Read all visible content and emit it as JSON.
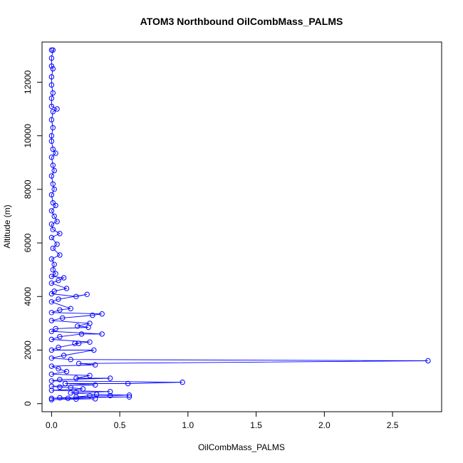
{
  "chart_data": {
    "type": "line",
    "title": "ATOM3 Northbound OilCombMass_PALMS",
    "xlabel": "OilCombMass_PALMS",
    "ylabel": "Altitude (m)",
    "xlim": [
      -0.07,
      2.86
    ],
    "ylim": [
      -300,
      13500
    ],
    "xticks": [
      0.0,
      0.5,
      1.0,
      1.5,
      2.0,
      2.5
    ],
    "xtick_labels": [
      "0.0",
      "0.5",
      "1.0",
      "1.5",
      "2.0",
      "2.5"
    ],
    "yticks": [
      0,
      2000,
      4000,
      6000,
      8000,
      10000,
      12000
    ],
    "ytick_labels": [
      "0",
      "2000",
      "4000",
      "6000",
      "8000",
      "10000",
      "12000"
    ],
    "grid": false,
    "marker": "open-circle",
    "series": [
      {
        "color": "#0000ff",
        "points": [
          [
            0.0,
            13200
          ],
          [
            0.01,
            13200
          ],
          [
            0.0,
            12900
          ],
          [
            0.0,
            12600
          ],
          [
            0.01,
            12500
          ],
          [
            0.0,
            12200
          ],
          [
            0.0,
            11900
          ],
          [
            0.01,
            11600
          ],
          [
            0.0,
            11400
          ],
          [
            0.0,
            11100
          ],
          [
            0.04,
            11000
          ],
          [
            0.01,
            10900
          ],
          [
            0.0,
            10600
          ],
          [
            0.01,
            10300
          ],
          [
            0.0,
            10000
          ],
          [
            0.0,
            9800
          ],
          [
            0.01,
            9500
          ],
          [
            0.03,
            9350
          ],
          [
            0.0,
            9200
          ],
          [
            0.01,
            8900
          ],
          [
            0.02,
            8700
          ],
          [
            0.0,
            8500
          ],
          [
            0.01,
            8200
          ],
          [
            0.02,
            8000
          ],
          [
            0.0,
            7800
          ],
          [
            0.01,
            7500
          ],
          [
            0.03,
            7400
          ],
          [
            0.0,
            7200
          ],
          [
            0.02,
            7000
          ],
          [
            0.04,
            6800
          ],
          [
            0.0,
            6700
          ],
          [
            0.01,
            6500
          ],
          [
            0.06,
            6350
          ],
          [
            0.0,
            6200
          ],
          [
            0.04,
            5950
          ],
          [
            0.01,
            5800
          ],
          [
            0.06,
            5550
          ],
          [
            0.0,
            5400
          ],
          [
            0.02,
            5200
          ],
          [
            0.01,
            5000
          ],
          [
            0.03,
            4850
          ],
          [
            0.0,
            4750
          ],
          [
            0.09,
            4700
          ],
          [
            0.05,
            4600
          ],
          [
            0.0,
            4500
          ],
          [
            0.11,
            4300
          ],
          [
            0.02,
            4200
          ],
          [
            0.0,
            4100
          ],
          [
            0.18,
            4000
          ],
          [
            0.26,
            4080
          ],
          [
            0.05,
            3900
          ],
          [
            0.0,
            3800
          ],
          [
            0.14,
            3550
          ],
          [
            0.06,
            3500
          ],
          [
            0.0,
            3400
          ],
          [
            0.37,
            3350
          ],
          [
            0.3,
            3300
          ],
          [
            0.08,
            3200
          ],
          [
            0.0,
            3100
          ],
          [
            0.28,
            3000
          ],
          [
            0.19,
            2900
          ],
          [
            0.27,
            2850
          ],
          [
            0.03,
            2800
          ],
          [
            0.0,
            2700
          ],
          [
            0.37,
            2600
          ],
          [
            0.22,
            2600
          ],
          [
            0.06,
            2500
          ],
          [
            0.0,
            2400
          ],
          [
            0.28,
            2300
          ],
          [
            0.17,
            2250
          ],
          [
            0.2,
            2250
          ],
          [
            0.05,
            2100
          ],
          [
            0.0,
            2000
          ],
          [
            0.31,
            2000
          ],
          [
            0.09,
            1800
          ],
          [
            0.0,
            1700
          ],
          [
            0.14,
            1650
          ],
          [
            2.76,
            1600
          ],
          [
            0.2,
            1500
          ],
          [
            0.32,
            1450
          ],
          [
            0.0,
            1400
          ],
          [
            0.05,
            1300
          ],
          [
            0.11,
            1200
          ],
          [
            0.0,
            1100
          ],
          [
            0.28,
            1050
          ],
          [
            0.18,
            950
          ],
          [
            0.43,
            950
          ],
          [
            0.06,
            900
          ],
          [
            0.0,
            850
          ],
          [
            0.96,
            800
          ],
          [
            0.56,
            750
          ],
          [
            0.1,
            750
          ],
          [
            0.32,
            700
          ],
          [
            0.0,
            650
          ],
          [
            0.06,
            620
          ],
          [
            0.14,
            600
          ],
          [
            0.23,
            550
          ],
          [
            0.0,
            500
          ],
          [
            0.43,
            450
          ],
          [
            0.18,
            420
          ],
          [
            0.14,
            400
          ],
          [
            0.33,
            350
          ],
          [
            0.57,
            320
          ],
          [
            0.43,
            300
          ],
          [
            0.28,
            300
          ],
          [
            0.18,
            250
          ],
          [
            0.57,
            250
          ],
          [
            0.06,
            220
          ],
          [
            0.0,
            200
          ],
          [
            0.12,
            200
          ],
          [
            0.32,
            180
          ],
          [
            0.18,
            170
          ],
          [
            0.0,
            150
          ]
        ]
      }
    ]
  }
}
